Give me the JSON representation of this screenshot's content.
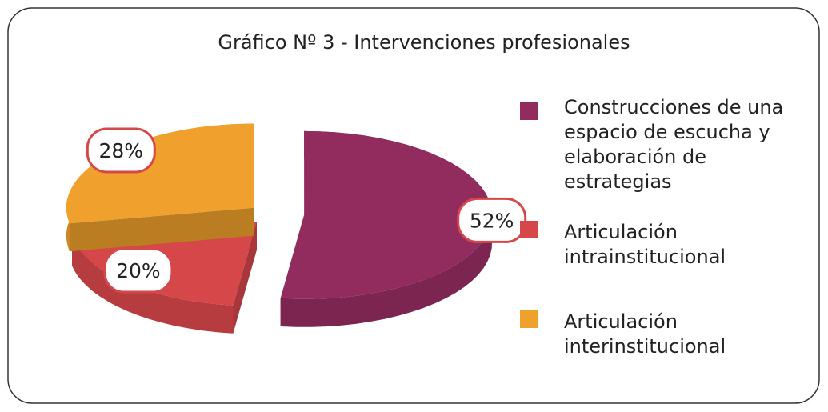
{
  "chart_data": {
    "type": "pie3d",
    "title": "Gráfico Nº 3 - Intervenciones profesionales",
    "categories": [
      "Construcciones de una espacio de escucha y elaboración de estrategias",
      "Articulación intrainstitucional",
      "Articulación interinstitucional"
    ],
    "values": [
      52,
      20,
      28
    ],
    "value_labels": [
      "52%",
      "20%",
      "28%"
    ],
    "colors": [
      "#922c5e",
      "#d6474a",
      "#f0a02c"
    ],
    "legend": "right"
  }
}
